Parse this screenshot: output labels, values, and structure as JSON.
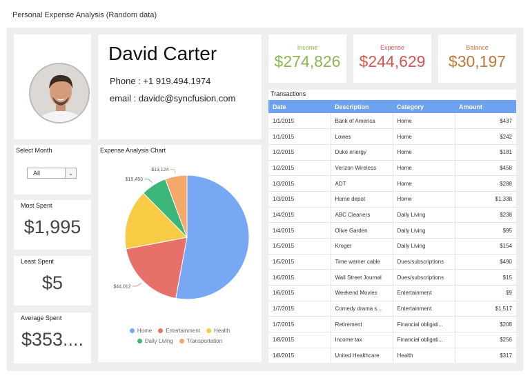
{
  "page": {
    "title": "Personal Expense Analysis (Random data)"
  },
  "profile": {
    "name": "David Carter",
    "phone": "Phone : +1 919.494.1974",
    "email": "email : davidc@syncfusion.com"
  },
  "kpis": {
    "income": {
      "label": "Income",
      "value": "$274,826",
      "color": "#8ab850"
    },
    "expense": {
      "label": "Expense",
      "value": "$244,629",
      "color": "#d9534f"
    },
    "balance": {
      "label": "Balance",
      "value": "$30,197",
      "color": "#c0783a"
    }
  },
  "month": {
    "label": "Select Month",
    "value": "All"
  },
  "stats": {
    "most": {
      "label": "Most Spent",
      "value": "$1,995"
    },
    "least": {
      "label": "Least Spent",
      "value": "$5"
    },
    "average": {
      "label": "Average Spent",
      "value": "$353...."
    }
  },
  "chart_data": {
    "type": "pie",
    "title": "Expense Analysis Chart",
    "categories": [
      "Home",
      "Entertainment",
      "Health",
      "Daily Living",
      "Transportation"
    ],
    "values": [
      122000,
      44012,
      36000,
      15453,
      13124
    ],
    "data_labels": [
      "",
      "$44,012",
      "",
      "$15,453",
      "$13,124"
    ],
    "colors": [
      "#78a7f3",
      "#e7716a",
      "#f8cb45",
      "#3db679",
      "#f2a96a"
    ],
    "legend": "bottom"
  },
  "transactions": {
    "title": "Transactions",
    "columns": [
      "Date",
      "Description",
      "Category",
      "Amount"
    ],
    "rows": [
      [
        "1/1/2015",
        "Bank of America",
        "Home",
        "$437"
      ],
      [
        "1/1/2015",
        "Lowes",
        "Home",
        "$242"
      ],
      [
        "1/2/2015",
        "Duke energy",
        "Home",
        "$181"
      ],
      [
        "1/2/2015",
        "Verizon Wireless",
        "Home",
        "$458"
      ],
      [
        "1/3/2015",
        "ADT",
        "Home",
        "$288"
      ],
      [
        "1/3/2015",
        "Home depot",
        "Home",
        "$1,338"
      ],
      [
        "1/4/2015",
        "ABC Cleaners",
        "Daily Living",
        "$238"
      ],
      [
        "1/4/2015",
        "Olive Garden",
        "Daily Living",
        "$95"
      ],
      [
        "1/5/2015",
        "Kroger",
        "Daily Living",
        "$154"
      ],
      [
        "1/5/2015",
        "Time warner cable",
        "Dues/subscriptions",
        "$490"
      ],
      [
        "1/6/2015",
        "Wall Street Journal",
        "Dues/subscriptions",
        "$15"
      ],
      [
        "1/6/2015",
        "Weekend Movies",
        "Entertainment",
        "$9"
      ],
      [
        "1/7/2015",
        "Comedy drama s...",
        "Entertainment",
        "$1,517"
      ],
      [
        "1/7/2015",
        "Retirement",
        "Financial obligati...",
        "$208"
      ],
      [
        "1/8/2015",
        "Income tax",
        "Financial obligati...",
        "$256"
      ],
      [
        "1/8/2015",
        "United Healthcare",
        "Health",
        "$317"
      ]
    ]
  }
}
